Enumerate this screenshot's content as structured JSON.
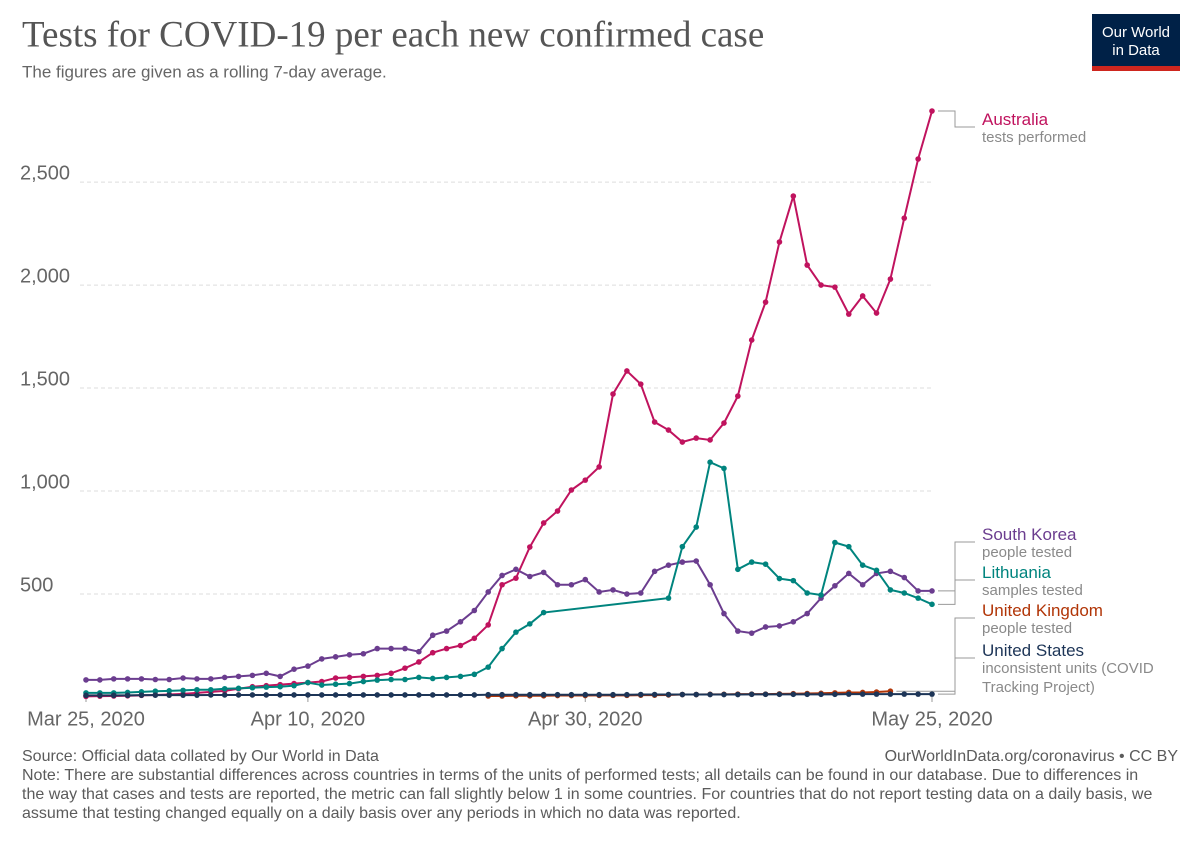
{
  "chart_data": {
    "type": "line",
    "title": "Tests for COVID-19 per each new confirmed case",
    "subtitle": "The figures are given as a rolling 7-day average.",
    "logo": [
      "Our World",
      "in Data"
    ],
    "source": "Source: Official data collated by Our World in Data",
    "license": "OurWorldInData.org/coronavirus • CC BY",
    "note": "Note: There are substantial differences across countries in terms of the units of performed tests; all details can be found in our database. Due to differences in the way that cases and tests are reported, the metric can fall slightly below 1 in some countries. For countries that do not report testing data on a daily basis, we assume that testing changed equally on a daily basis over any periods in which no data was reported.",
    "x": [
      "2020-03-25",
      "2020-03-26",
      "2020-03-27",
      "2020-03-28",
      "2020-03-29",
      "2020-03-30",
      "2020-03-31",
      "2020-04-01",
      "2020-04-02",
      "2020-04-03",
      "2020-04-04",
      "2020-04-05",
      "2020-04-06",
      "2020-04-07",
      "2020-04-08",
      "2020-04-09",
      "2020-04-10",
      "2020-04-11",
      "2020-04-12",
      "2020-04-13",
      "2020-04-14",
      "2020-04-15",
      "2020-04-16",
      "2020-04-17",
      "2020-04-18",
      "2020-04-19",
      "2020-04-20",
      "2020-04-21",
      "2020-04-22",
      "2020-04-23",
      "2020-04-24",
      "2020-04-25",
      "2020-04-26",
      "2020-04-27",
      "2020-04-28",
      "2020-04-29",
      "2020-04-30",
      "2020-05-01",
      "2020-05-02",
      "2020-05-03",
      "2020-05-04",
      "2020-05-05",
      "2020-05-06",
      "2020-05-07",
      "2020-05-08",
      "2020-05-09",
      "2020-05-10",
      "2020-05-11",
      "2020-05-12",
      "2020-05-13",
      "2020-05-14",
      "2020-05-15",
      "2020-05-16",
      "2020-05-17",
      "2020-05-18",
      "2020-05-19",
      "2020-05-20",
      "2020-05-21",
      "2020-05-22",
      "2020-05-23",
      "2020-05-24",
      "2020-05-25"
    ],
    "xlim": [
      "2020-03-25",
      "2020-05-25"
    ],
    "xticks": [
      {
        "value": "2020-03-25",
        "label": "Mar 25, 2020"
      },
      {
        "value": "2020-04-10",
        "label": "Apr 10, 2020"
      },
      {
        "value": "2020-04-30",
        "label": "Apr 30, 2020"
      },
      {
        "value": "2020-05-25",
        "label": "May 25, 2020"
      }
    ],
    "ylim": [
      0,
      2850
    ],
    "yticks": [
      {
        "value": 500,
        "label": "500"
      },
      {
        "value": 1000,
        "label": "1,000"
      },
      {
        "value": 1500,
        "label": "1,500"
      },
      {
        "value": 2000,
        "label": "2,000"
      },
      {
        "value": 2500,
        "label": "2,500"
      }
    ],
    "grid": true,
    "series": [
      {
        "name": "Australia",
        "unit": "tests performed",
        "color": "#c0135e",
        "values": [
          3,
          4,
          5,
          6,
          8,
          10,
          12,
          15,
          20,
          25,
          30,
          40,
          50,
          55,
          60,
          65,
          70,
          75,
          92,
          95,
          100,
          105,
          115,
          140,
          170,
          215,
          235,
          250,
          285,
          350,
          545,
          577,
          728,
          845,
          903,
          1005,
          1053,
          1117,
          1471,
          1583,
          1519,
          1335,
          1296,
          1238,
          1257,
          1248,
          1330,
          1461,
          1733,
          1917,
          2209,
          2432,
          2097,
          2000,
          1990,
          1859,
          1947,
          1864,
          2029,
          2325,
          2612,
          2845
        ]
      },
      {
        "name": "South Korea",
        "unit": "people tested",
        "color": "#6b3d8f",
        "values": [
          83,
          83,
          88,
          88,
          88,
          85,
          85,
          92,
          88,
          88,
          95,
          100,
          105,
          115,
          100,
          135,
          150,
          185,
          195,
          205,
          210,
          235,
          235,
          235,
          220,
          300,
          320,
          365,
          420,
          510,
          590,
          620,
          585,
          605,
          545,
          545,
          570,
          510,
          520,
          500,
          505,
          610,
          640,
          655,
          660,
          545,
          405,
          320,
          310,
          340,
          345,
          365,
          405,
          480,
          540,
          600,
          545,
          600,
          610,
          580,
          515,
          515
        ]
      },
      {
        "name": "Lithuania",
        "unit": "samples tested",
        "color": "#00847e",
        "x": [
          "2020-03-25",
          "2020-03-26",
          "2020-03-27",
          "2020-03-28",
          "2020-03-29",
          "2020-03-30",
          "2020-03-31",
          "2020-04-01",
          "2020-04-02",
          "2020-04-03",
          "2020-04-04",
          "2020-04-05",
          "2020-04-06",
          "2020-04-07",
          "2020-04-08",
          "2020-04-09",
          "2020-04-10",
          "2020-04-11",
          "2020-04-12",
          "2020-04-13",
          "2020-04-14",
          "2020-04-15",
          "2020-04-16",
          "2020-04-17",
          "2020-04-18",
          "2020-04-19",
          "2020-04-20",
          "2020-04-21",
          "2020-04-22",
          "2020-04-23",
          "2020-04-24",
          "2020-04-25",
          "2020-04-26",
          "2020-04-27",
          "2020-05-06",
          "2020-05-07",
          "2020-05-08",
          "2020-05-09",
          "2020-05-10",
          "2020-05-11",
          "2020-05-12",
          "2020-05-13",
          "2020-05-14",
          "2020-05-15",
          "2020-05-16",
          "2020-05-17",
          "2020-05-18",
          "2020-05-19",
          "2020-05-20",
          "2020-05-21",
          "2020-05-22",
          "2020-05-23",
          "2020-05-24",
          "2020-05-25"
        ],
        "values": [
          20,
          20,
          20,
          22,
          25,
          28,
          30,
          32,
          35,
          35,
          40,
          42,
          45,
          48,
          50,
          55,
          70,
          58,
          62,
          65,
          75,
          82,
          85,
          85,
          95,
          90,
          95,
          100,
          110,
          145,
          235,
          315,
          355,
          410,
          480,
          730,
          825,
          1140,
          1110,
          620,
          655,
          645,
          575,
          565,
          505,
          495,
          750,
          730,
          640,
          615,
          520,
          505,
          480,
          450
        ]
      },
      {
        "name": "United Kingdom",
        "unit": "people tested",
        "color": "#b13507",
        "values": [
          null,
          null,
          null,
          null,
          null,
          null,
          null,
          null,
          null,
          null,
          null,
          null,
          null,
          null,
          null,
          null,
          null,
          null,
          null,
          null,
          null,
          null,
          null,
          null,
          null,
          null,
          null,
          null,
          null,
          5,
          5,
          6,
          6,
          6,
          7,
          7,
          7,
          8,
          8,
          8,
          9,
          9,
          10,
          12,
          12,
          13,
          13,
          14,
          14,
          14,
          15,
          16,
          17,
          18,
          20,
          22,
          22,
          24,
          28,
          null,
          null,
          null
        ]
      },
      {
        "name": "United States",
        "unit": "inconsistent units (COVID Tracking Project)",
        "color": "#1d3557",
        "values": [
          8,
          8,
          8,
          8,
          9,
          9,
          9,
          9,
          9,
          10,
          10,
          10,
          10,
          10,
          10,
          10,
          10,
          10,
          10,
          10,
          10,
          10,
          10,
          10,
          10,
          10,
          10,
          10,
          10,
          11,
          11,
          11,
          11,
          11,
          11,
          11,
          11,
          11,
          11,
          11,
          12,
          12,
          12,
          12,
          12,
          12,
          12,
          12,
          13,
          13,
          13,
          13,
          13,
          13,
          13,
          14,
          14,
          14,
          14,
          14,
          14,
          14
        ]
      }
    ]
  }
}
